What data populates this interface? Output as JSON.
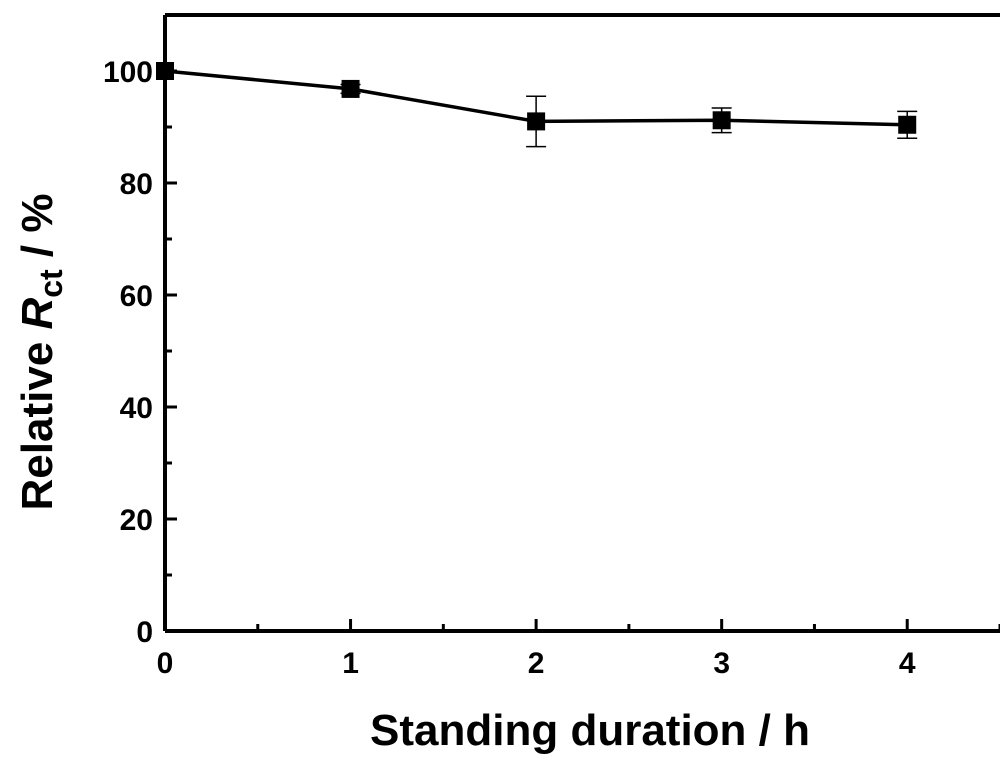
{
  "chart_data": {
    "type": "line",
    "title": "",
    "xlabel": "Standing duration / h",
    "ylabel": {
      "prefix": "Relative ",
      "symbol": "R",
      "subscript": "ct",
      "suffix": " / %"
    },
    "xlim": [
      0,
      4.5
    ],
    "ylim": [
      0,
      110
    ],
    "xticks": [
      0,
      1,
      2,
      3,
      4
    ],
    "yticks": [
      0,
      20,
      40,
      60,
      80,
      100
    ],
    "grid": false,
    "legend": "none",
    "series": [
      {
        "x": [
          0,
          1,
          2,
          3,
          4
        ],
        "y": [
          100,
          96.8,
          91.0,
          91.2,
          90.4
        ],
        "yerr": [
          0,
          0.8,
          4.5,
          2.2,
          2.4
        ],
        "marker": "square",
        "color": "#000000"
      }
    ]
  }
}
